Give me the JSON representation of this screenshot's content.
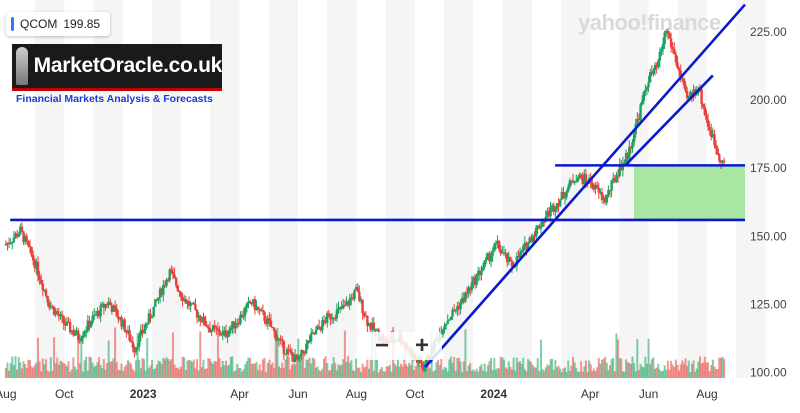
{
  "ticker": {
    "symbol": "QCOM",
    "price": "199.85"
  },
  "logo": {
    "name": "MarketOracle.co.uk",
    "tagline": "Financial Markets Analysis & Forecasts"
  },
  "watermark": "yahoo!finance",
  "zoom": {
    "minus": "−",
    "plus": "+"
  },
  "colors": {
    "up": "#1aa260",
    "down": "#e8413b",
    "trendline": "#0b18cc",
    "zone": "#a8e6a1",
    "band": "#f5f5f5"
  },
  "chart_data": {
    "type": "candlestick",
    "y_ticks": [
      100,
      125,
      150,
      175,
      200,
      225
    ],
    "y_tick_labels": [
      "100.00",
      "125.00",
      "150.00",
      "175.00",
      "200.00",
      "225.00"
    ],
    "ylim": [
      98,
      233
    ],
    "x_ticks": [
      {
        "t": 0,
        "label": "Aug"
      },
      {
        "t": 2,
        "label": "Oct"
      },
      {
        "t": 4.7,
        "label": "2023"
      },
      {
        "t": 8,
        "label": "Apr"
      },
      {
        "t": 10,
        "label": "Jun"
      },
      {
        "t": 12,
        "label": "Aug"
      },
      {
        "t": 14,
        "label": "Oct"
      },
      {
        "t": 16.7,
        "label": "2024"
      },
      {
        "t": 20,
        "label": "Apr"
      },
      {
        "t": 22,
        "label": "Jun"
      },
      {
        "t": 24,
        "label": "Aug"
      }
    ],
    "xlim": [
      -0.2,
      25.3
    ],
    "price_path": [
      [
        0,
        147
      ],
      [
        0.5,
        152
      ],
      [
        1,
        140
      ],
      [
        1.5,
        125
      ],
      [
        2,
        118
      ],
      [
        2.5,
        113
      ],
      [
        3,
        120
      ],
      [
        3.5,
        126
      ],
      [
        4,
        118
      ],
      [
        4.4,
        109
      ],
      [
        5,
        122
      ],
      [
        5.6,
        137
      ],
      [
        6.1,
        127
      ],
      [
        6.6,
        121
      ],
      [
        7,
        116
      ],
      [
        7.5,
        114
      ],
      [
        8,
        120
      ],
      [
        8.4,
        126
      ],
      [
        9,
        118
      ],
      [
        9.5,
        109
      ],
      [
        10,
        104
      ],
      [
        10.4,
        112
      ],
      [
        11,
        120
      ],
      [
        11.6,
        124
      ],
      [
        12,
        130
      ],
      [
        12.4,
        118
      ],
      [
        13,
        111
      ],
      [
        13.5,
        113
      ],
      [
        14,
        105
      ],
      [
        14.3,
        102
      ],
      [
        15,
        118
      ],
      [
        15.6,
        126
      ],
      [
        16,
        133
      ],
      [
        16.4,
        140
      ],
      [
        16.8,
        147
      ],
      [
        17.3,
        139
      ],
      [
        17.6,
        143
      ],
      [
        18,
        150
      ],
      [
        18.6,
        159
      ],
      [
        19,
        164
      ],
      [
        19.5,
        172
      ],
      [
        20,
        170
      ],
      [
        20.5,
        163
      ],
      [
        21,
        175
      ],
      [
        21.3,
        180
      ],
      [
        21.7,
        196
      ],
      [
        22,
        208
      ],
      [
        22.3,
        212
      ],
      [
        22.6,
        226
      ],
      [
        22.9,
        216
      ],
      [
        23.3,
        200
      ],
      [
        23.7,
        205
      ],
      [
        24,
        192
      ],
      [
        24.4,
        180
      ],
      [
        24.6,
        176
      ]
    ],
    "volume_max": 1,
    "horizontal_lines": [
      {
        "name": "support",
        "y": 156,
        "x_from": 0.15,
        "x_to": 25.3
      },
      {
        "name": "resistance",
        "y": 176,
        "x_from": 18.8,
        "x_to": 25.3
      }
    ],
    "trendlines": [
      {
        "name": "uptrend-lower",
        "from": [
          14.35,
          102
        ],
        "to": [
          25.3,
          235
        ]
      },
      {
        "name": "uptrend-upper",
        "from": [
          21.2,
          176
        ],
        "to": [
          24.2,
          209
        ]
      }
    ],
    "zone": {
      "name": "buy-zone",
      "x_from": 21.5,
      "x_to": 25.3,
      "y_from": 156,
      "y_to": 176
    }
  }
}
